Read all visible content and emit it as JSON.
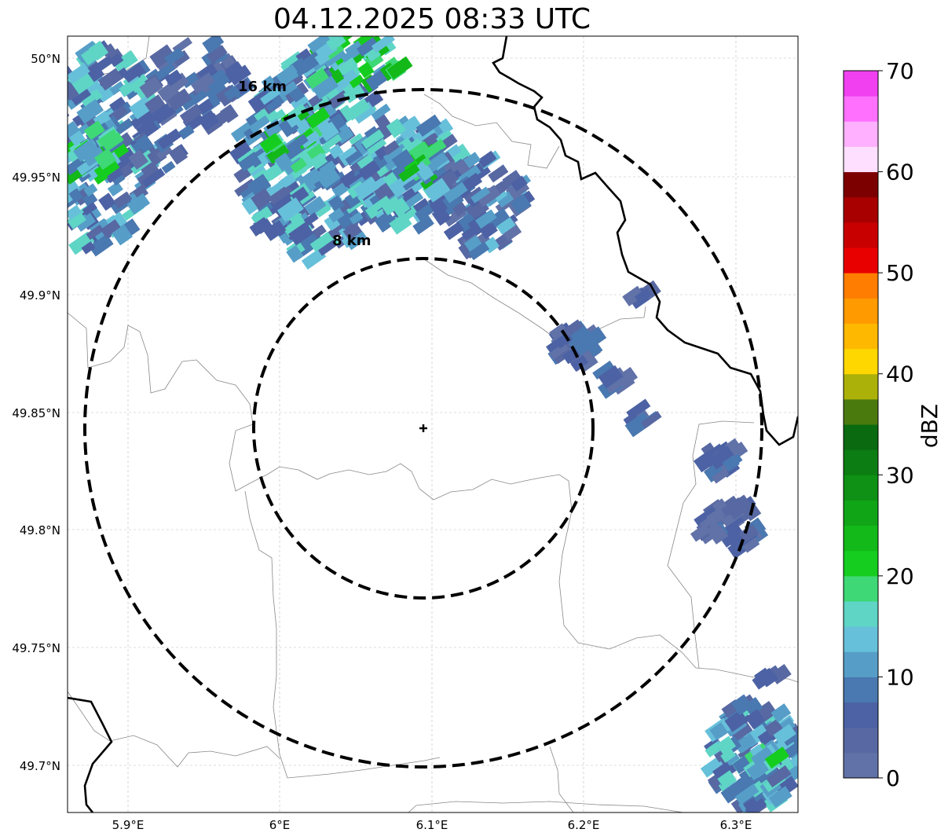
{
  "map": {
    "title": "04.12.2025 08:33 UTC",
    "longitude_ticks": [
      "5.9°E",
      "6°E",
      "6.1°E",
      "6.2°E",
      "6.3°E"
    ],
    "latitude_ticks": [
      "50°N",
      "49.95°N",
      "49.9°N",
      "49.85°N",
      "49.8°N",
      "49.75°N",
      "49.7°N"
    ],
    "range_rings": [
      {
        "label": "8 km",
        "radius_km": 8
      },
      {
        "label": "16 km",
        "radius_km": 16
      }
    ],
    "radar_site_marker": "plus-marker",
    "extent": {
      "lon": [
        5.86,
        6.34
      ],
      "lat": [
        49.68,
        50.01
      ]
    },
    "grid": true,
    "basemap": "country and administrative borders"
  },
  "colorbar": {
    "label": "dBZ",
    "ticks": [
      "0",
      "10",
      "20",
      "30",
      "40",
      "50",
      "60",
      "70"
    ],
    "range": [
      0,
      70
    ],
    "step": 2.5,
    "colors": [
      "#6172a8",
      "#5768a2",
      "#4c62a4",
      "#4a78b0",
      "#569ec8",
      "#67c0da",
      "#5fd5c6",
      "#3ed876",
      "#15cd1e",
      "#12b918",
      "#10a516",
      "#0e9114",
      "#0c7d12",
      "#0a6a10",
      "#4a7a0e",
      "#acb10a",
      "#ffd700",
      "#ffb800",
      "#ff9a00",
      "#ff7d00",
      "#e80000",
      "#c90000",
      "#a80000",
      "#7d0000",
      "#ffdfff",
      "#ffb0ff",
      "#ff70ff",
      "#f040f0"
    ]
  }
}
